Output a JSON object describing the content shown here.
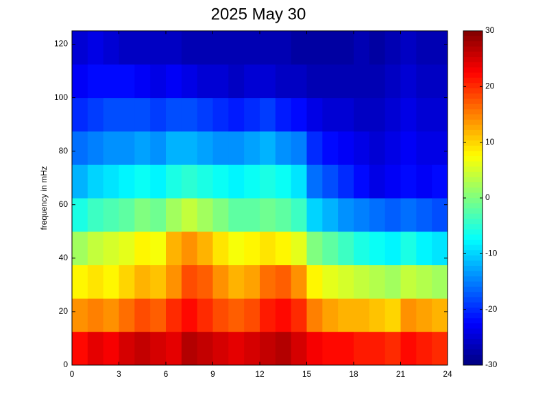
{
  "chart_data": {
    "type": "heatmap",
    "title": "2025 May 30",
    "ylabel": "frequency in mHz",
    "colormap": "jet",
    "xbins": [
      0,
      1,
      2,
      3,
      4,
      5,
      6,
      7,
      8,
      9,
      10,
      11,
      12,
      13,
      14,
      15,
      16,
      17,
      18,
      19,
      20,
      21,
      22,
      23,
      24
    ],
    "ybins": [
      0,
      12.5,
      25,
      37.5,
      50,
      62.5,
      75,
      87.5,
      100,
      112.5,
      125
    ],
    "z": [
      [
        22,
        24,
        23,
        25,
        26,
        25,
        24,
        27,
        26,
        25,
        24,
        25,
        26,
        27,
        25,
        23,
        22,
        22,
        21,
        21,
        20,
        22,
        21,
        20
      ],
      [
        14,
        15,
        14,
        16,
        18,
        17,
        20,
        22,
        20,
        18,
        17,
        18,
        21,
        22,
        20,
        15,
        13,
        12,
        12,
        11,
        10,
        14,
        13,
        12
      ],
      [
        8,
        9,
        8,
        10,
        12,
        11,
        14,
        18,
        17,
        14,
        12,
        13,
        16,
        17,
        14,
        8,
        6,
        5,
        4,
        3,
        2,
        4,
        3,
        2
      ],
      [
        2,
        4,
        5,
        6,
        8,
        7,
        12,
        14,
        12,
        9,
        7,
        8,
        9,
        8,
        6,
        0,
        -2,
        -4,
        -6,
        -7,
        -8,
        -6,
        -8,
        -9
      ],
      [
        -6,
        -4,
        -3,
        -2,
        0,
        -1,
        2,
        4,
        2,
        0,
        -2,
        -2,
        -1,
        -2,
        -4,
        -10,
        -12,
        -14,
        -15,
        -16,
        -17,
        -16,
        -17,
        -18
      ],
      [
        -12,
        -10,
        -9,
        -8,
        -7,
        -8,
        -6,
        -5,
        -6,
        -7,
        -8,
        -7,
        -6,
        -7,
        -9,
        -16,
        -18,
        -20,
        -22,
        -24,
        -23,
        -22,
        -23,
        -22
      ],
      [
        -16,
        -15,
        -14,
        -14,
        -13,
        -14,
        -12,
        -12,
        -13,
        -14,
        -14,
        -13,
        -12,
        -14,
        -15,
        -20,
        -22,
        -23,
        -24,
        -25,
        -24,
        -23,
        -24,
        -24
      ],
      [
        -20,
        -19,
        -18,
        -18,
        -18,
        -19,
        -18,
        -18,
        -19,
        -20,
        -21,
        -20,
        -19,
        -21,
        -22,
        -24,
        -25,
        -25,
        -26,
        -26,
        -25,
        -24,
        -25,
        -25
      ],
      [
        -23,
        -22,
        -22,
        -22,
        -23,
        -24,
        -23,
        -24,
        -25,
        -25,
        -26,
        -25,
        -25,
        -26,
        -26,
        -27,
        -27,
        -27,
        -27,
        -27,
        -26,
        -25,
        -26,
        -26
      ],
      [
        -25,
        -24,
        -25,
        -26,
        -26,
        -26,
        -26,
        -27,
        -27,
        -27,
        -27,
        -27,
        -27,
        -27,
        -28,
        -28,
        -28,
        -28,
        -27,
        -28,
        -27,
        -26,
        -27,
        -27
      ]
    ],
    "xlim": [
      0,
      24
    ],
    "xticks": [
      0,
      3,
      6,
      9,
      12,
      15,
      18,
      21,
      24
    ],
    "ylim": [
      0,
      125
    ],
    "yticks": [
      0,
      20,
      40,
      60,
      80,
      100,
      120
    ],
    "clim": [
      -30,
      30
    ],
    "cticks": [
      -30,
      -20,
      -10,
      0,
      10,
      20,
      30
    ]
  }
}
